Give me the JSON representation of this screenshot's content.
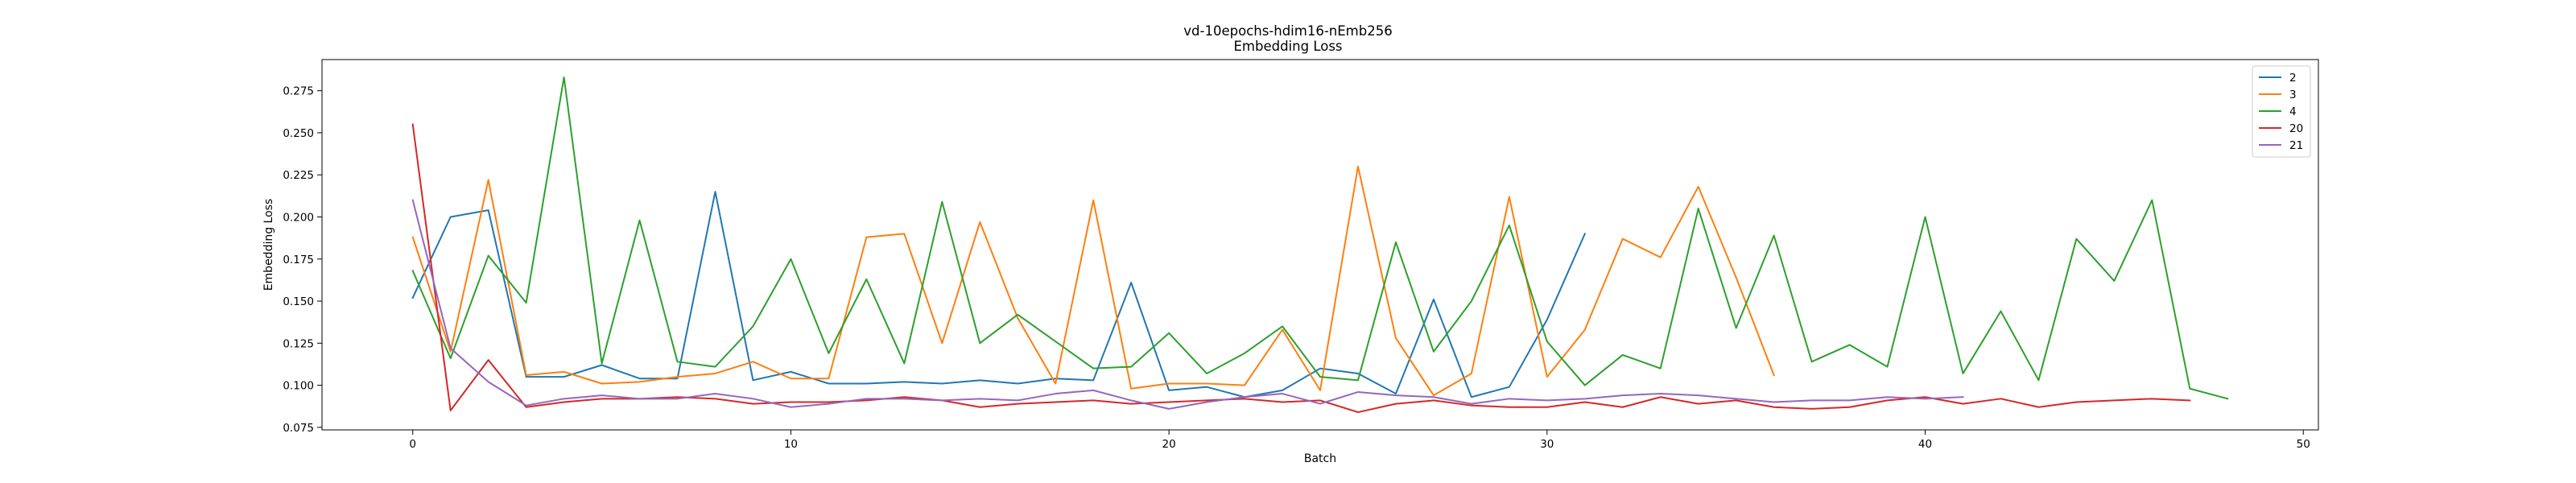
{
  "chart_data": {
    "type": "line",
    "title": "vd-10epochs-hdim16-nEmb256",
    "subtitle": "Embedding Loss",
    "xlabel": "Batch",
    "ylabel": "Embedding Loss",
    "xlim": [
      -2.4,
      50.4
    ],
    "ylim": [
      0.0735,
      0.2935
    ],
    "xticks": [
      0,
      10,
      20,
      30,
      40,
      50
    ],
    "yticks": [
      0.075,
      0.1,
      0.125,
      0.15,
      0.175,
      0.2,
      0.225,
      0.25,
      0.275
    ],
    "ytick_labels": [
      "0.075",
      "0.100",
      "0.125",
      "0.150",
      "0.175",
      "0.200",
      "0.225",
      "0.250",
      "0.275"
    ],
    "grid": false,
    "legend_position": "top-right",
    "series": [
      {
        "name": "2",
        "color": "#1f77b4",
        "values": [
          0.152,
          0.2,
          0.204,
          0.105,
          0.105,
          0.112,
          0.104,
          0.104,
          0.215,
          0.103,
          0.108,
          0.101,
          0.101,
          0.102,
          0.101,
          0.103,
          0.101,
          0.104,
          0.103,
          0.161,
          0.097,
          0.099,
          0.093,
          0.097,
          0.11,
          0.107,
          0.095,
          0.151,
          0.093,
          0.099,
          0.139,
          0.19
        ]
      },
      {
        "name": "3",
        "color": "#ff7f0e",
        "values": [
          0.188,
          0.12,
          0.222,
          0.106,
          0.108,
          0.101,
          0.102,
          0.105,
          0.107,
          0.114,
          0.104,
          0.104,
          0.188,
          0.19,
          0.125,
          0.197,
          0.14,
          0.101,
          0.21,
          0.098,
          0.101,
          0.101,
          0.1,
          0.133,
          0.097,
          0.23,
          0.128,
          0.094,
          0.107,
          0.212,
          0.105,
          0.133,
          0.187,
          0.176,
          0.218,
          0.164,
          0.106
        ]
      },
      {
        "name": "4",
        "color": "#2ca02c",
        "values": [
          0.168,
          0.116,
          0.177,
          0.149,
          0.283,
          0.113,
          0.198,
          0.114,
          0.111,
          0.135,
          0.175,
          0.119,
          0.163,
          0.113,
          0.209,
          0.125,
          0.142,
          0.126,
          0.11,
          0.111,
          0.131,
          0.107,
          0.119,
          0.135,
          0.105,
          0.103,
          0.185,
          0.12,
          0.15,
          0.195,
          0.126,
          0.1,
          0.118,
          0.11,
          0.205,
          0.134,
          0.189,
          0.114,
          0.124,
          0.111,
          0.2,
          0.107,
          0.144,
          0.103,
          0.187,
          0.162,
          0.21,
          0.098,
          0.092
        ]
      },
      {
        "name": "20",
        "color": "#d62728",
        "values": [
          0.255,
          0.085,
          0.115,
          0.087,
          0.09,
          0.092,
          0.092,
          0.093,
          0.092,
          0.089,
          0.09,
          0.09,
          0.091,
          0.093,
          0.091,
          0.087,
          0.089,
          0.09,
          0.091,
          0.089,
          0.09,
          0.091,
          0.092,
          0.09,
          0.091,
          0.084,
          0.089,
          0.091,
          0.088,
          0.087,
          0.087,
          0.09,
          0.087,
          0.093,
          0.089,
          0.091,
          0.087,
          0.086,
          0.087,
          0.091,
          0.093,
          0.089,
          0.092,
          0.087,
          0.09,
          0.091,
          0.092,
          0.091
        ]
      },
      {
        "name": "21",
        "color": "#9467bd",
        "values": [
          0.21,
          0.122,
          0.102,
          0.088,
          0.092,
          0.094,
          0.092,
          0.092,
          0.095,
          0.092,
          0.087,
          0.089,
          0.092,
          0.092,
          0.091,
          0.092,
          0.091,
          0.095,
          0.097,
          0.091,
          0.086,
          0.09,
          0.093,
          0.095,
          0.089,
          0.096,
          0.094,
          0.093,
          0.089,
          0.092,
          0.091,
          0.092,
          0.094,
          0.095,
          0.094,
          0.092,
          0.09,
          0.091,
          0.091,
          0.093,
          0.092,
          0.093
        ]
      }
    ]
  }
}
